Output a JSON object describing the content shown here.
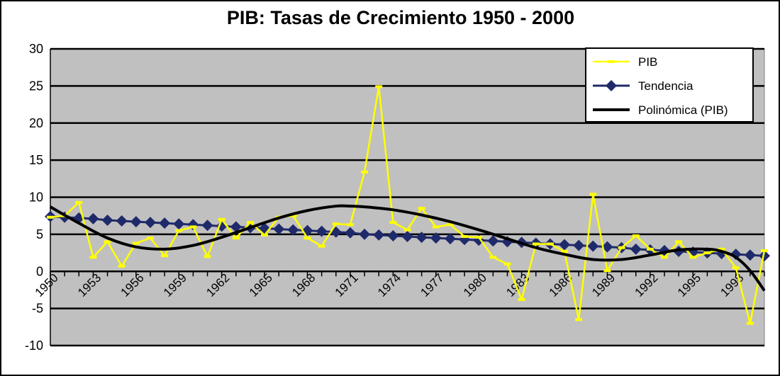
{
  "chart_data": {
    "type": "line",
    "title": "PIB: Tasas de Crecimiento 1950 - 2000",
    "xlabel": "",
    "ylabel": "",
    "x_range": [
      1950,
      2000
    ],
    "ylim": [
      -10,
      30
    ],
    "y_ticks": [
      -10,
      -5,
      0,
      5,
      10,
      15,
      20,
      25,
      30
    ],
    "x_tick_labels": [
      "1950",
      "1953",
      "1956",
      "1959",
      "1962",
      "1965",
      "1968",
      "1971",
      "1974",
      "1977",
      "1980",
      "1983",
      "1986",
      "1989",
      "1992",
      "1995",
      "1998"
    ],
    "grid": true,
    "legend_position": "top-right",
    "colors": {
      "pib": "#ffff00",
      "tendencia": "#1f2a6b",
      "polinomica": "#000000",
      "plot_bg": "#c0c0c0"
    },
    "series": [
      {
        "name": "PIB",
        "x": [
          1950,
          1951,
          1952,
          1953,
          1954,
          1955,
          1956,
          1957,
          1958,
          1959,
          1960,
          1961,
          1962,
          1963,
          1964,
          1965,
          1966,
          1967,
          1968,
          1969,
          1970,
          1971,
          1972,
          1973,
          1974,
          1975,
          1976,
          1977,
          1978,
          1979,
          1980,
          1981,
          1982,
          1983,
          1984,
          1985,
          1986,
          1987,
          1988,
          1989,
          1990,
          1991,
          1992,
          1993,
          1994,
          1995,
          1996,
          1997,
          1998,
          1999,
          2000
        ],
        "values": [
          7.3,
          7.5,
          9.3,
          1.9,
          4.0,
          0.7,
          3.8,
          4.5,
          2.1,
          5.5,
          6.0,
          2.0,
          7.0,
          4.5,
          6.6,
          4.9,
          7.3,
          7.5,
          4.5,
          3.4,
          6.4,
          6.3,
          13.4,
          24.9,
          6.6,
          5.6,
          8.5,
          6.0,
          6.3,
          4.7,
          4.6,
          1.9,
          1.0,
          -3.8,
          3.7,
          3.7,
          2.7,
          -6.5,
          10.4,
          0.1,
          3.2,
          4.8,
          3.0,
          1.9,
          4.0,
          1.9,
          2.5,
          3.0,
          0.5,
          -7.0,
          2.8
        ]
      },
      {
        "name": "Tendencia",
        "x": [
          1950,
          1951,
          1952,
          1953,
          1954,
          1955,
          1956,
          1957,
          1958,
          1959,
          1960,
          1961,
          1962,
          1963,
          1964,
          1965,
          1966,
          1967,
          1968,
          1969,
          1970,
          1971,
          1972,
          1973,
          1974,
          1975,
          1976,
          1977,
          1978,
          1979,
          1980,
          1981,
          1982,
          1983,
          1984,
          1985,
          1986,
          1987,
          1988,
          1989,
          1990,
          1991,
          1992,
          1993,
          1994,
          1995,
          1996,
          1997,
          1998,
          1999,
          2000
        ],
        "values": [
          7.4,
          7.3,
          7.2,
          7.1,
          6.9,
          6.8,
          6.7,
          6.6,
          6.5,
          6.4,
          6.3,
          6.2,
          6.1,
          6.0,
          5.9,
          5.8,
          5.7,
          5.6,
          5.5,
          5.4,
          5.3,
          5.2,
          5.0,
          4.9,
          4.8,
          4.7,
          4.6,
          4.5,
          4.4,
          4.3,
          4.2,
          4.1,
          4.0,
          3.9,
          3.8,
          3.7,
          3.6,
          3.5,
          3.4,
          3.3,
          3.2,
          3.0,
          2.9,
          2.8,
          2.7,
          2.6,
          2.5,
          2.4,
          2.3,
          2.2,
          2.1
        ]
      },
      {
        "name": "Polinómica (PIB)",
        "x": [
          1950,
          1952,
          1954,
          1956,
          1958,
          1960,
          1962,
          1964,
          1966,
          1968,
          1970,
          1971,
          1972,
          1974,
          1976,
          1978,
          1980,
          1982,
          1984,
          1986,
          1988,
          1990,
          1992,
          1994,
          1996,
          1997,
          1998,
          1999,
          2000
        ],
        "values": [
          8.7,
          6.5,
          4.5,
          3.3,
          3.0,
          3.5,
          4.6,
          5.9,
          7.2,
          8.2,
          8.8,
          8.8,
          8.7,
          8.3,
          7.6,
          6.7,
          5.6,
          4.4,
          3.2,
          2.3,
          1.6,
          1.6,
          2.2,
          2.9,
          3.0,
          2.7,
          1.9,
          0.1,
          -2.6
        ]
      }
    ]
  }
}
